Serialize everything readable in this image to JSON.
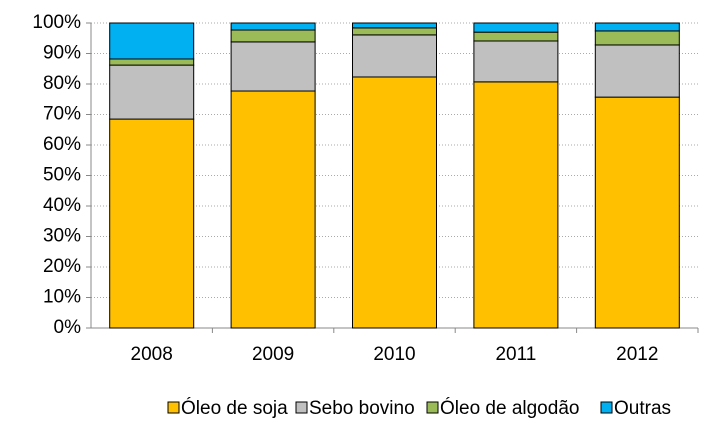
{
  "chart_data": {
    "type": "stacked_bar",
    "categories": [
      "2008",
      "2009",
      "2010",
      "2011",
      "2012"
    ],
    "series": [
      {
        "name": "Óleo de soja",
        "color": "#FFC000",
        "values": [
          68.5,
          77.7,
          82.3,
          80.7,
          75.7
        ]
      },
      {
        "name": "Sebo bovino",
        "color": "#C0C0C0",
        "values": [
          17.7,
          16.1,
          13.8,
          13.4,
          17.1
        ]
      },
      {
        "name": "Óleo de algodão",
        "color": "#9BBB59",
        "values": [
          2.0,
          3.9,
          2.3,
          2.9,
          4.6
        ]
      },
      {
        "name": "Outras",
        "color": "#00B0F0",
        "values": [
          11.8,
          2.3,
          1.6,
          3.0,
          2.6
        ]
      }
    ],
    "ylim": [
      0,
      100
    ],
    "yticks": [
      {
        "value": 0,
        "label": "0%"
      },
      {
        "value": 10,
        "label": "10%"
      },
      {
        "value": 20,
        "label": "20%"
      },
      {
        "value": 30,
        "label": "30%"
      },
      {
        "value": 40,
        "label": "40%"
      },
      {
        "value": 50,
        "label": "50%"
      },
      {
        "value": 60,
        "label": "60%"
      },
      {
        "value": 70,
        "label": "70%"
      },
      {
        "value": 80,
        "label": "80%"
      },
      {
        "value": 90,
        "label": "90%"
      },
      {
        "value": 100,
        "label": "100%"
      }
    ],
    "grid": true,
    "legend": "bottom"
  }
}
